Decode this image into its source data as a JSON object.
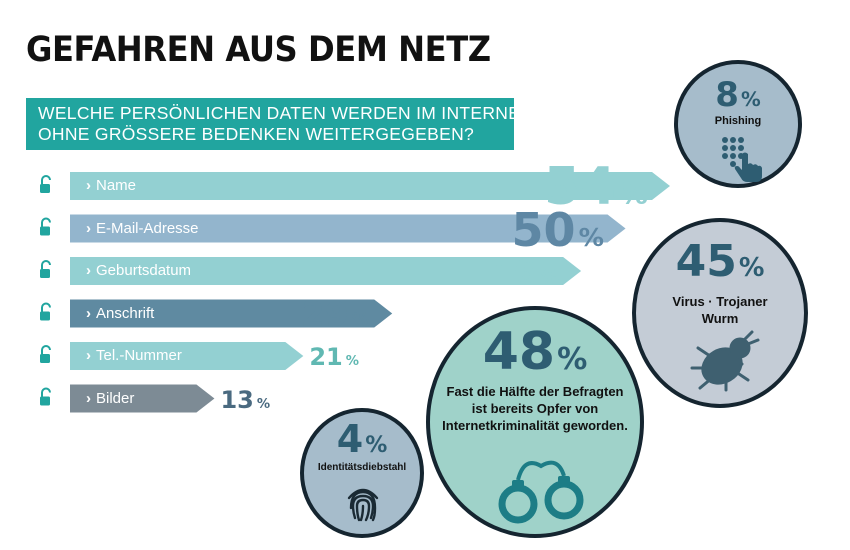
{
  "title": "GEFAHREN AUS DEM NETZ",
  "question": {
    "line1": "WELCHE PERSÖNLICHEN DATEN WERDEN IM INTERNET",
    "line2": "OHNE GRÖSSERE BEDENKEN WEITERGEGEBEN?"
  },
  "chart_data": {
    "type": "bar",
    "orientation": "horizontal",
    "title": "WELCHE PERSÖNLICHEN DATEN WERDEN IM INTERNET OHNE GRÖSSERE BEDENKEN WEITERGEGEBEN?",
    "unit": "%",
    "categories": [
      "Name",
      "E-Mail-Adresse",
      "Geburtsdatum",
      "Anschrift",
      "Tel.-Nummer",
      "Bilder"
    ],
    "values": [
      54,
      50,
      46,
      29,
      21,
      13
    ],
    "percent_sign": "%",
    "xlim": [
      0,
      54
    ],
    "bar_colors": [
      "#93d0d2",
      "#93b5cd",
      "#93d0d2",
      "#5f8aa1",
      "#93d0d2",
      "#7d8b95"
    ],
    "label_colors": [
      "#93d0d2",
      "#5e87a4",
      "#93d0d2",
      "#5f8aa1",
      "#60b8b2",
      "#4a6a80"
    ]
  },
  "circles": {
    "phishing": {
      "value": "8",
      "sign": "%",
      "label": "Phishing",
      "icon": "keypad-hand-icon"
    },
    "virus": {
      "value": "45",
      "sign": "%",
      "label_line1": "Virus · Trojaner",
      "label_line2": "Wurm",
      "icon": "bug-icon"
    },
    "victims": {
      "value": "48",
      "sign": "%",
      "line1": "Fast die Hälfte der Befragten",
      "line2": "ist bereits Opfer von",
      "line3": "Internetkriminalität geworden.",
      "icon": "handcuffs-icon"
    },
    "identity": {
      "value": "4",
      "sign": "%",
      "label": "Identitätsdiebstahl",
      "icon": "fingerprint-icon"
    }
  },
  "colors": {
    "teal": "#21a59f",
    "dark_blue": "#2e5d72",
    "circle_dark_border": "#152530",
    "phishing_fill": "#a6bccb",
    "virus_fill": "#c4ccd6",
    "victims_fill": "#9fd2c9",
    "identity_fill": "#a6bccb"
  }
}
